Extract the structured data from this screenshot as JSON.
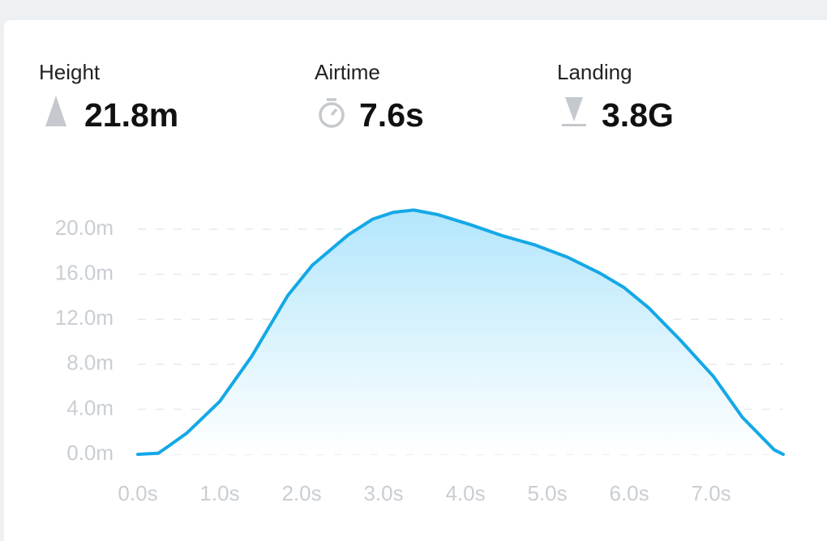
{
  "stats": [
    {
      "label": "Height",
      "value": "21.8m"
    },
    {
      "label": "Airtime",
      "value": "7.6s"
    },
    {
      "label": "Landing",
      "value": "3.8G"
    }
  ],
  "chart_data": {
    "type": "area",
    "color": "#14a8e6",
    "grid": true,
    "x": [
      0,
      0.25,
      0.35,
      0.6,
      1.0,
      1.39,
      1.83,
      2.13,
      2.57,
      2.87,
      3.12,
      3.37,
      3.66,
      4.06,
      4.46,
      4.85,
      5.25,
      5.64,
      5.94,
      6.24,
      6.63,
      7.03,
      7.38,
      7.77,
      7.88
    ],
    "series": [
      {
        "values": [
          0,
          0.1,
          0.6,
          1.9,
          4.7,
          8.7,
          14.1,
          16.8,
          19.5,
          20.9,
          21.5,
          21.7,
          21.3,
          20.4,
          19.4,
          18.6,
          17.5,
          16.1,
          14.8,
          13.0,
          10.1,
          6.9,
          3.3,
          0.4,
          0
        ]
      }
    ],
    "xlim": [
      0,
      7.88
    ],
    "ylim": [
      0,
      20
    ],
    "xticks": [
      {
        "value": 0,
        "label": "0.0s"
      },
      {
        "value": 1,
        "label": "1.0s"
      },
      {
        "value": 2,
        "label": "2.0s"
      },
      {
        "value": 3,
        "label": "3.0s"
      },
      {
        "value": 4,
        "label": "4.0s"
      },
      {
        "value": 5,
        "label": "5.0s"
      },
      {
        "value": 6,
        "label": "6.0s"
      },
      {
        "value": 7,
        "label": "7.0s"
      }
    ],
    "yticks": [
      {
        "value": 0,
        "label": "0.0m"
      },
      {
        "value": 4,
        "label": "4.0m"
      },
      {
        "value": 8,
        "label": "8.0m"
      },
      {
        "value": 12,
        "label": "12.0m"
      },
      {
        "value": 16,
        "label": "16.0m"
      },
      {
        "value": 20,
        "label": "20.0m"
      }
    ]
  }
}
